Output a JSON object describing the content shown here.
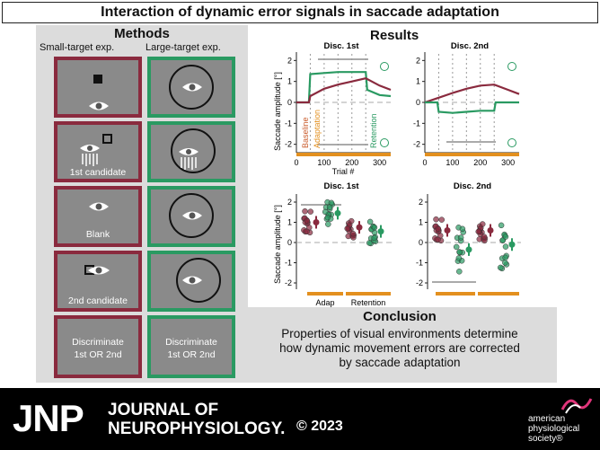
{
  "title": "Interaction of dynamic error signals in saccade adaptation",
  "methods": {
    "heading": "Methods",
    "col_small": "Small-target exp.",
    "col_large": "Large-target exp.",
    "labels": [
      "1st candidate",
      "Blank",
      "2nd candidate",
      "Discriminate",
      "1st OR 2nd"
    ]
  },
  "results": {
    "heading": "Results",
    "top_left_title": "Disc. 1st",
    "top_right_title": "Disc. 2nd",
    "bottom_left_title": "Disc. 1st",
    "bottom_right_title": "Disc. 2nd",
    "ylabel": "Saccade amplitude [°]",
    "xlabel": "Trial #",
    "phase_baseline": "Baseline",
    "phase_adaptation": "Adaptation",
    "phase_retention": "Retention",
    "bottom_x_adap": "Adap",
    "bottom_x_retention": "Retention",
    "y_ticks": [
      "2",
      "1",
      "0",
      "-1",
      "-2"
    ],
    "x_ticks": [
      "0",
      "100",
      "200",
      "300"
    ]
  },
  "chart_data": [
    {
      "type": "line",
      "title": "Disc. 1st",
      "xlabel": "Trial #",
      "ylabel": "Saccade amplitude [°]",
      "xlim": [
        0,
        340
      ],
      "ylim": [
        -2.4,
        2.4
      ],
      "series": [
        {
          "color": "#2a9a62",
          "x": [
            0,
            45,
            50,
            100,
            150,
            200,
            250,
            255,
            300,
            340
          ],
          "y": [
            0.0,
            0.0,
            1.35,
            1.4,
            1.45,
            1.45,
            1.45,
            0.6,
            0.35,
            0.3
          ]
        },
        {
          "color": "#8a2a3e",
          "x": [
            0,
            45,
            50,
            100,
            150,
            200,
            250,
            300,
            340
          ],
          "y": [
            0.0,
            0.0,
            0.3,
            0.65,
            0.85,
            1.0,
            1.15,
            0.8,
            0.6
          ]
        }
      ]
    },
    {
      "type": "line",
      "title": "Disc. 2nd",
      "xlabel": "Trial #",
      "xlim": [
        0,
        340
      ],
      "ylim": [
        -2.4,
        2.4
      ],
      "series": [
        {
          "color": "#8a2a3e",
          "x": [
            0,
            45,
            100,
            150,
            200,
            250,
            300,
            340
          ],
          "y": [
            0.0,
            0.2,
            0.45,
            0.65,
            0.8,
            0.85,
            0.6,
            0.4
          ]
        },
        {
          "color": "#2a9a62",
          "x": [
            0,
            45,
            50,
            100,
            150,
            200,
            250,
            255,
            300,
            340
          ],
          "y": [
            0.0,
            0.0,
            -0.45,
            -0.5,
            -0.45,
            -0.4,
            -0.4,
            0.0,
            0.0,
            0.0
          ]
        }
      ]
    },
    {
      "type": "scatter",
      "title": "Disc. 1st",
      "ylabel": "Saccade amplitude [°]",
      "categories": [
        "Adap",
        "Retention"
      ],
      "ylim": [
        -2.4,
        2.4
      ],
      "series": [
        {
          "color": "#8a2a3e",
          "means": [
            1.0,
            0.75
          ]
        },
        {
          "color": "#2a9a62",
          "means": [
            1.45,
            0.55
          ]
        }
      ]
    },
    {
      "type": "scatter",
      "title": "Disc. 2nd",
      "ylim": [
        -2.4,
        2.4
      ],
      "series": [
        {
          "color": "#8a2a3e",
          "means": [
            0.6,
            0.6
          ]
        },
        {
          "color": "#2a9a62",
          "means": [
            -0.35,
            -0.1
          ]
        }
      ]
    }
  ],
  "conclusion": {
    "heading": "Conclusion",
    "lines": [
      "Properties of visual environments determine",
      "how dynamic movement errors are corrected",
      "by saccade adaptation"
    ]
  },
  "footer": {
    "logo": "JNP",
    "journal_line1": "JOURNAL OF",
    "journal_line2": "NEUROPHYSIOLOGY.",
    "copyright": "© 2023",
    "society": [
      "american",
      "physiological",
      "society®"
    ]
  },
  "colors": {
    "red": "#8a2a3e",
    "green": "#2a9a62",
    "orange": "#e3901f",
    "panel_gray": "#8a8a8a"
  }
}
